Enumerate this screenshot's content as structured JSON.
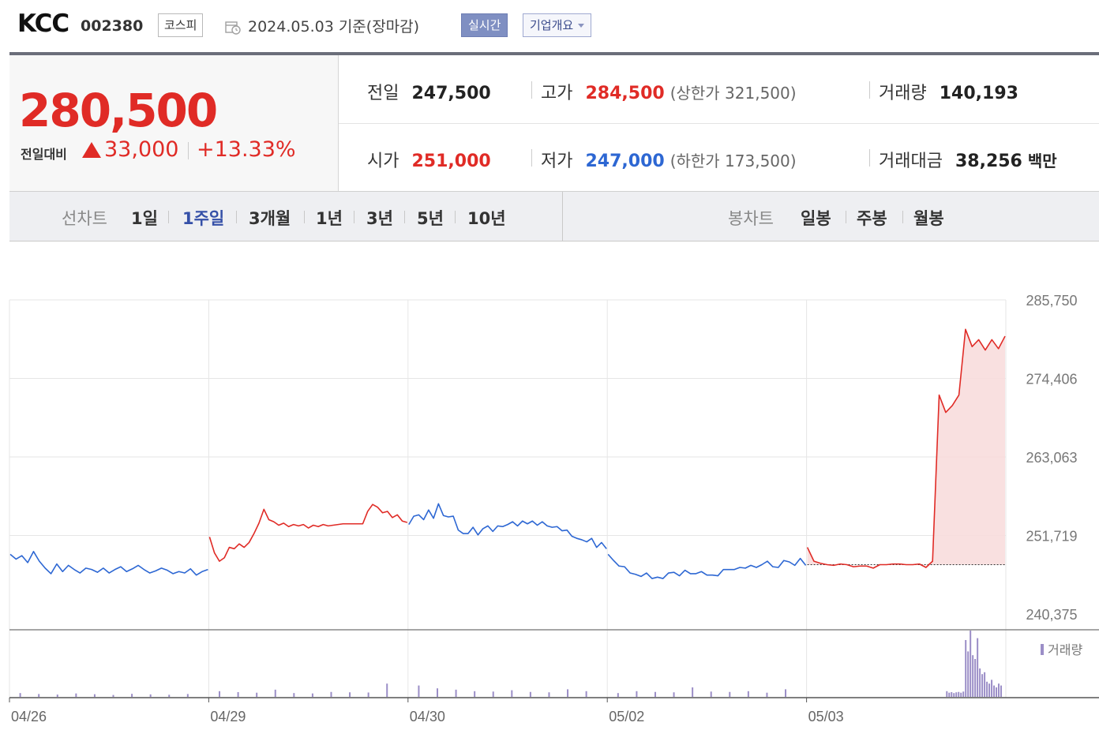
{
  "header": {
    "company": "KCC",
    "code": "002380",
    "market": "코스피",
    "date_text": "2024.05.03  기준(장마감)",
    "realtime_button": "실시간",
    "overview_button": "기업개요"
  },
  "price": {
    "current": "280,500",
    "compare_label": "전일대비",
    "change": "33,000",
    "change_pct": "+13.33%"
  },
  "stats": {
    "prev_label": "전일",
    "prev_value": "247,500",
    "high_label": "고가",
    "high_value": "284,500",
    "upper_limit": "(상한가 321,500)",
    "volume_label": "거래량",
    "volume_value": "140,193",
    "open_label": "시가",
    "open_value": "251,000",
    "low_label": "저가",
    "low_value": "247,000",
    "lower_limit": "(하한가 173,500)",
    "amount_label": "거래대금",
    "amount_value": "38,256",
    "amount_unit": "백만"
  },
  "tabs": {
    "line_label": "선차트",
    "periods": [
      "1일",
      "1주일",
      "3개월",
      "1년",
      "3년",
      "5년",
      "10년"
    ],
    "active_period": "1주일",
    "candle_label": "봉차트",
    "candles": [
      "일봉",
      "주봉",
      "월봉"
    ]
  },
  "colors": {
    "up": "#e02b26",
    "down": "#2d67d3",
    "fill": "#f8dada",
    "volume": "#9b8ec7"
  },
  "chart_data": {
    "type": "line",
    "x_ticks": [
      "04/26",
      "04/29",
      "04/30",
      "05/02",
      "05/03"
    ],
    "y_ticks": [
      "285,750",
      "274,406",
      "263,063",
      "251,719",
      "240,375"
    ],
    "ylim": [
      240375,
      285750
    ],
    "reference_price": 247500,
    "volume_legend": "거래량",
    "series": [
      {
        "day": "04/26",
        "points": [
          249000,
          248300,
          248800,
          247800,
          249400,
          248000,
          247000,
          246200,
          247600,
          246500,
          247400,
          246800,
          246300,
          247000,
          246800,
          246400,
          247000,
          246300,
          246800,
          247200,
          246500,
          246900,
          247400,
          246800,
          246300,
          246600,
          247000,
          246700,
          246200,
          246500,
          246300,
          246900,
          246000,
          246500,
          246800
        ]
      },
      {
        "day": "04/29",
        "points": [
          251500,
          249200,
          248000,
          248500,
          250000,
          249800,
          250500,
          250000,
          250700,
          252000,
          253500,
          255500,
          254000,
          253700,
          253200,
          253500,
          253000,
          253300,
          253100,
          253300,
          252800,
          253200,
          253000,
          253300,
          253100,
          253200,
          253300,
          253400,
          253400,
          253400,
          253400,
          253400,
          255200,
          256200,
          255800,
          255000,
          255200,
          254300,
          254700,
          253800,
          253600
        ]
      },
      {
        "day": "04/30",
        "points": [
          253300,
          254500,
          254700,
          254000,
          255400,
          254200,
          256300,
          254600,
          254400,
          254500,
          252500,
          252000,
          252000,
          252900,
          251800,
          252700,
          253100,
          252300,
          253100,
          253000,
          253300,
          253700,
          253100,
          253800,
          253400,
          253800,
          253200,
          253700,
          253100,
          252900,
          253000,
          252400,
          252500,
          251600,
          251300,
          251100,
          250800,
          251300,
          250000,
          250700,
          249800
        ]
      },
      {
        "day": "05/02",
        "points": [
          249000,
          248100,
          247300,
          247200,
          246300,
          246100,
          245800,
          246300,
          245500,
          245700,
          245500,
          246300,
          246400,
          245900,
          246700,
          246200,
          246200,
          246500,
          246000,
          246000,
          245900,
          246800,
          246800,
          246800,
          247100,
          247000,
          247400,
          247100,
          247500,
          248000,
          247200,
          247100,
          248100,
          247900,
          247400,
          248400,
          247400
        ]
      },
      {
        "day": "05/03",
        "points": [
          250000,
          248000,
          247700,
          247500,
          247400,
          247600,
          247500,
          247200,
          247300,
          247300,
          247000,
          247500,
          247500,
          247600,
          247600,
          247500,
          247500,
          247600,
          247100,
          248000,
          272000,
          269500,
          270500,
          272000,
          281500,
          279000,
          280000,
          278500,
          280000,
          278700,
          280500
        ]
      }
    ],
    "volume_by_day": [
      {
        "day": "04/26",
        "values": [
          200,
          150,
          120,
          180,
          140,
          100,
          160,
          130,
          110,
          150
        ]
      },
      {
        "day": "04/29",
        "values": [
          300,
          250,
          220,
          380,
          200,
          180,
          260,
          240,
          230,
          700
        ]
      },
      {
        "day": "04/30",
        "values": [
          600,
          450,
          380,
          300,
          280,
          350,
          260,
          240,
          400,
          300
        ]
      },
      {
        "day": "05/02",
        "values": [
          200,
          300,
          260,
          240,
          500,
          280,
          260,
          300,
          220,
          400
        ]
      },
      {
        "day": "05/03",
        "values": [
          300,
          220,
          250,
          200,
          240,
          260,
          220,
          280,
          3000,
          2400,
          3500,
          2200,
          2000,
          3100,
          1500,
          1200,
          1300,
          800,
          700,
          900,
          600,
          500,
          700,
          600
        ]
      }
    ]
  }
}
